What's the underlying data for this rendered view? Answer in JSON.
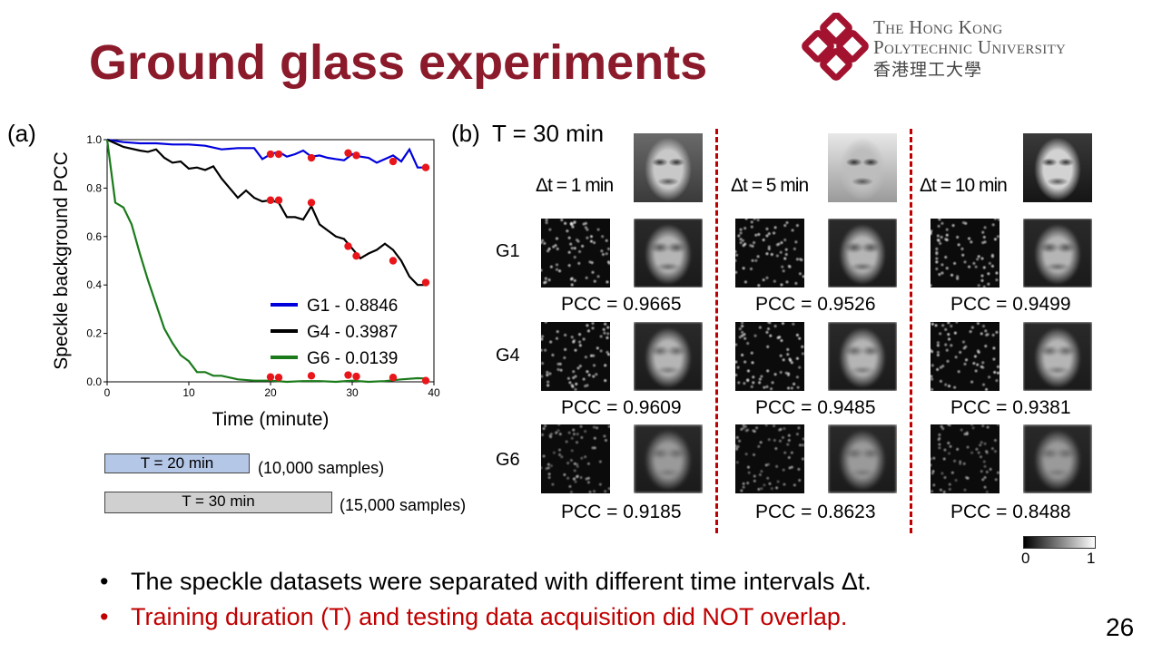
{
  "slide": {
    "title": "Ground glass experiments",
    "page_number": "26"
  },
  "logo": {
    "name_en_line1": "The Hong Kong",
    "name_en_line2": "Polytechnic University",
    "name_zh": "香港理工大學",
    "brand_color": "#A3132F"
  },
  "panel_a": {
    "label": "(a)",
    "chart_data": {
      "type": "line",
      "xlabel": "Time (minute)",
      "ylabel": "Speckle background PCC",
      "xlim": [
        0,
        40
      ],
      "ylim": [
        0,
        1.0
      ],
      "xticks": [
        "0",
        "10",
        "20",
        "30",
        "40"
      ],
      "yticks": [
        "0.0",
        "0.2",
        "0.4",
        "0.6",
        "0.8",
        "1.0"
      ],
      "grid": false,
      "legend_placement": "right",
      "series": [
        {
          "name": "G1 - 0.8846",
          "color": "#0000DD",
          "x": [
            0,
            2,
            4,
            6,
            8,
            10,
            12,
            14,
            16,
            18,
            19,
            20,
            21,
            22,
            23,
            24,
            25,
            26,
            27,
            28,
            29,
            30,
            31,
            32,
            33,
            34,
            35,
            36,
            37,
            38,
            39
          ],
          "y": [
            1.0,
            0.99,
            0.985,
            0.985,
            0.98,
            0.98,
            0.975,
            0.96,
            0.965,
            0.965,
            0.92,
            0.94,
            0.95,
            0.93,
            0.94,
            0.955,
            0.93,
            0.935,
            0.925,
            0.92,
            0.915,
            0.94,
            0.93,
            0.925,
            0.905,
            0.92,
            0.935,
            0.91,
            0.96,
            0.885,
            0.885
          ],
          "markers_x": [
            20,
            21,
            25,
            29.5,
            30.5,
            35,
            39
          ],
          "markers_y": [
            0.94,
            0.94,
            0.925,
            0.945,
            0.935,
            0.91,
            0.885
          ]
        },
        {
          "name": "G4 - 0.3987",
          "color": "#000000",
          "x": [
            0,
            2,
            4,
            5,
            6,
            7,
            8,
            9,
            10,
            11,
            12,
            13,
            14,
            15,
            16,
            17,
            18,
            19,
            20,
            21,
            22,
            23,
            24,
            25,
            26,
            27,
            28,
            29,
            30,
            31,
            32,
            33,
            34,
            35,
            36,
            37,
            38,
            39
          ],
          "y": [
            1.0,
            0.97,
            0.955,
            0.95,
            0.96,
            0.925,
            0.905,
            0.91,
            0.88,
            0.885,
            0.875,
            0.89,
            0.84,
            0.8,
            0.76,
            0.79,
            0.76,
            0.745,
            0.75,
            0.74,
            0.68,
            0.68,
            0.67,
            0.725,
            0.65,
            0.625,
            0.6,
            0.59,
            0.55,
            0.51,
            0.53,
            0.545,
            0.57,
            0.545,
            0.5,
            0.435,
            0.4,
            0.4
          ],
          "markers_x": [
            20,
            21,
            25,
            29.5,
            30.5,
            35,
            39
          ],
          "markers_y": [
            0.75,
            0.75,
            0.74,
            0.56,
            0.52,
            0.5,
            0.41
          ]
        },
        {
          "name": "G6 - 0.0139",
          "color": "#1A7A1A",
          "x": [
            0,
            1,
            2,
            3,
            4,
            5,
            6,
            7,
            8,
            9,
            10,
            11,
            12,
            13,
            14,
            16,
            18,
            20,
            22,
            24,
            26,
            28,
            30,
            32,
            34,
            36,
            38,
            39
          ],
          "y": [
            1.0,
            0.74,
            0.72,
            0.65,
            0.53,
            0.42,
            0.32,
            0.22,
            0.16,
            0.11,
            0.085,
            0.04,
            0.04,
            0.025,
            0.025,
            0.01,
            0.005,
            0.005,
            0.0,
            0.003,
            0.003,
            0.0,
            0.005,
            0.0,
            0.003,
            0.01,
            0.015,
            0.014
          ],
          "markers_x": [
            20,
            21,
            25,
            29.5,
            30.5,
            35,
            39
          ],
          "markers_y": [
            0.02,
            0.018,
            0.025,
            0.028,
            0.022,
            0.018,
            0.005
          ]
        }
      ],
      "marker_color": "#E8161B"
    }
  },
  "training_bars": [
    {
      "label": "T = 20 min",
      "samples": "(10,000 samples)",
      "color": "#B4C7E7"
    },
    {
      "label": "T = 30 min",
      "samples": "(15,000 samples)",
      "color": "#D0D0D0"
    }
  ],
  "panel_b": {
    "label": "(b)",
    "heading": "T = 30 min",
    "columns": [
      {
        "dt": "Δt = 1 min",
        "pcc": [
          "PCC = 0.9665",
          "PCC = 0.9609",
          "PCC = 0.9185"
        ]
      },
      {
        "dt": "Δt = 5 min",
        "pcc": [
          "PCC = 0.9526",
          "PCC = 0.9485",
          "PCC = 0.8623"
        ]
      },
      {
        "dt": "Δt = 10 min",
        "pcc": [
          "PCC = 0.9499",
          "PCC = 0.9381",
          "PCC = 0.8488"
        ]
      }
    ],
    "rows": [
      "G1",
      "G4",
      "G6"
    ],
    "colorbar": {
      "min": "0",
      "max": "1"
    }
  },
  "bullets": [
    {
      "text": "The speckle datasets were separated with different time intervals Δt.",
      "color": "#000000"
    },
    {
      "text": "Training duration (T) and testing data acquisition did NOT overlap.",
      "color": "#C00000"
    }
  ]
}
